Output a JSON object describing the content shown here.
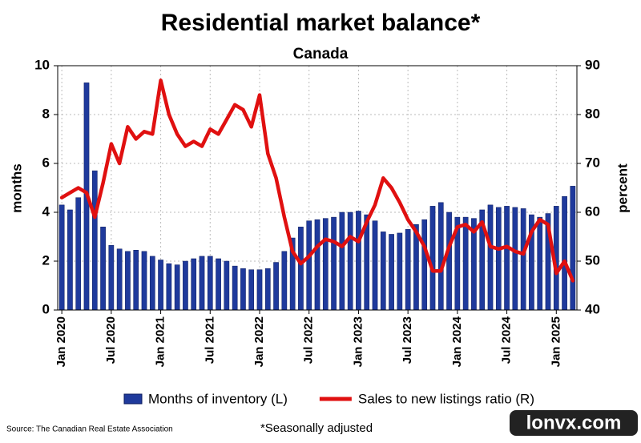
{
  "chart_data": {
    "type": "bar-line",
    "title": "Residential market balance*",
    "subtitle": "Canada",
    "y_label": "months",
    "y2_label": "percent",
    "categories": [
      "Jan 2020",
      null,
      null,
      null,
      null,
      null,
      "Jul 2020",
      null,
      null,
      null,
      null,
      null,
      "Jan 2021",
      null,
      null,
      null,
      null,
      null,
      "Jul 2021",
      null,
      null,
      null,
      null,
      null,
      "Jan 2022",
      null,
      null,
      null,
      null,
      null,
      "Jul 2022",
      null,
      null,
      null,
      null,
      null,
      "Jan 2023",
      null,
      null,
      null,
      null,
      null,
      "Jul 2023",
      null,
      null,
      null,
      null,
      null,
      "Jan 2024",
      null,
      null,
      null,
      null,
      null,
      "Jul 2024",
      null,
      null,
      null,
      null,
      null,
      "Jan 2025",
      null,
      null
    ],
    "series": [
      {
        "name": "Months of inventory (L)",
        "kind": "bar",
        "axis": "y",
        "color": "#1f3a9c",
        "values": [
          4.3,
          4.1,
          4.6,
          9.3,
          5.7,
          3.4,
          2.65,
          2.5,
          2.4,
          2.45,
          2.4,
          2.2,
          2.05,
          1.9,
          1.85,
          2.0,
          2.1,
          2.2,
          2.2,
          2.1,
          2.0,
          1.8,
          1.7,
          1.65,
          1.65,
          1.7,
          1.95,
          2.4,
          2.95,
          3.4,
          3.65,
          3.7,
          3.75,
          3.8,
          4.0,
          4.0,
          4.05,
          3.9,
          3.65,
          3.2,
          3.1,
          3.15,
          3.3,
          3.5,
          3.7,
          4.25,
          4.4,
          4.0,
          3.8,
          3.8,
          3.75,
          4.1,
          4.3,
          4.2,
          4.25,
          4.2,
          4.15,
          3.9,
          3.8,
          3.95,
          4.25,
          4.65,
          5.07
        ]
      },
      {
        "name": "Sales to new listings ratio (R)",
        "kind": "line",
        "axis": "y2",
        "color": "#e01010",
        "values": [
          63,
          64,
          65,
          64,
          59,
          66,
          74,
          70,
          77.5,
          75,
          76.5,
          76,
          87,
          80,
          76,
          73.5,
          74.5,
          73.5,
          77,
          76,
          79,
          82,
          81,
          77.5,
          84,
          72,
          67,
          59,
          52,
          49.5,
          51,
          53,
          54.5,
          54,
          53,
          55,
          54,
          58,
          61.5,
          67,
          65,
          62,
          58.5,
          56,
          53,
          48,
          48,
          53,
          57,
          57.5,
          56,
          58,
          53,
          52.5,
          53,
          52,
          51.5,
          56,
          58.5,
          57.5,
          47.5,
          50,
          46
        ]
      }
    ],
    "ylim": [
      0,
      10
    ],
    "yticks": [
      0,
      2,
      4,
      6,
      8,
      10
    ],
    "y2lim": [
      40,
      90
    ],
    "y2ticks": [
      40,
      50,
      60,
      70,
      80,
      90
    ],
    "grid": true,
    "source": "Source: The Canadian Real Estate Association",
    "note": "*Seasonally adjusted",
    "watermark": "lonvx.com"
  }
}
